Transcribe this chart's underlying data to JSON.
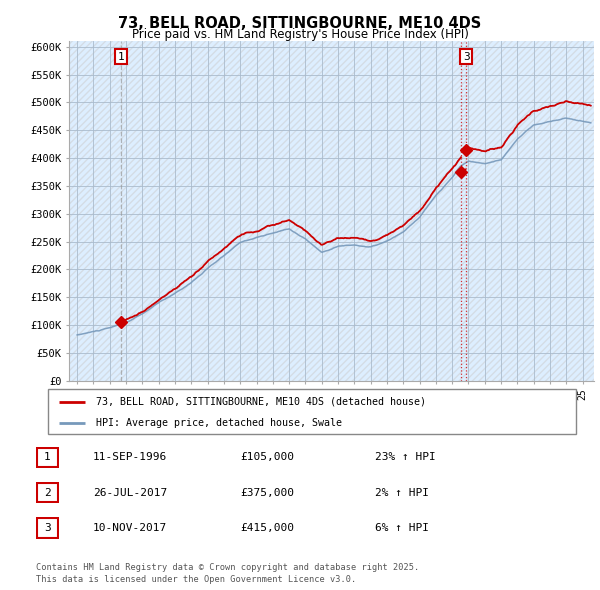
{
  "title": "73, BELL ROAD, SITTINGBOURNE, ME10 4DS",
  "subtitle": "Price paid vs. HM Land Registry's House Price Index (HPI)",
  "bg_color": "#ffffff",
  "plot_bg_color": "#ddeeff",
  "grid_color": "#aabbcc",
  "sale1_price": 105000,
  "sale2_price": 375000,
  "sale3_price": 415000,
  "legend_label_red": "73, BELL ROAD, SITTINGBOURNE, ME10 4DS (detached house)",
  "legend_label_blue": "HPI: Average price, detached house, Swale",
  "table_rows": [
    {
      "num": "1",
      "date": "11-SEP-1996",
      "price": "£105,000",
      "hpi": "23% ↑ HPI"
    },
    {
      "num": "2",
      "date": "26-JUL-2017",
      "price": "£375,000",
      "hpi": "2% ↑ HPI"
    },
    {
      "num": "3",
      "date": "10-NOV-2017",
      "price": "£415,000",
      "hpi": "6% ↑ HPI"
    }
  ],
  "footer": "Contains HM Land Registry data © Crown copyright and database right 2025.\nThis data is licensed under the Open Government Licence v3.0.",
  "ylim": [
    0,
    610000
  ],
  "yticks": [
    0,
    50000,
    100000,
    150000,
    200000,
    250000,
    300000,
    350000,
    400000,
    450000,
    500000,
    550000,
    600000
  ],
  "ytick_labels": [
    "£0",
    "£50K",
    "£100K",
    "£150K",
    "£200K",
    "£250K",
    "£300K",
    "£350K",
    "£400K",
    "£450K",
    "£500K",
    "£550K",
    "£600K"
  ],
  "xlim_start": 1993.5,
  "xlim_end": 2025.7,
  "red_color": "#cc0000",
  "blue_color": "#7799bb",
  "vline1_color": "#999999",
  "vline23_color": "#cc0000",
  "hatch_color": "#cccccc"
}
